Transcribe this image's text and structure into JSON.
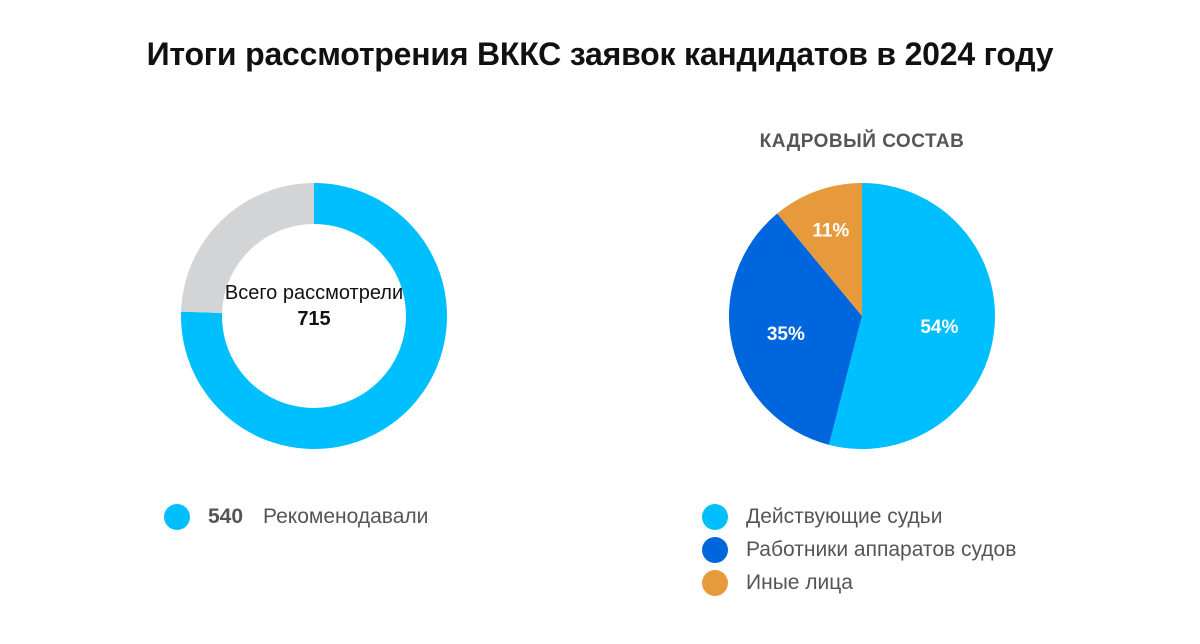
{
  "title": "Итоги рассмотрения ВККС заявок кандидатов в 2024 году",
  "chart_data": [
    {
      "type": "pie",
      "variant": "donut",
      "center_label": "Всего рассмотрели",
      "total": 715,
      "slices": [
        {
          "label": "Рекомендавали",
          "value": 540,
          "color": "#00bfff",
          "legend": true
        },
        {
          "label": "",
          "value": 175,
          "color": "#d3d4d6",
          "legend": false
        }
      ]
    },
    {
      "type": "pie",
      "title": "КАДРОВЫЙ СОСТАВ",
      "slices": [
        {
          "label": "Действующие судьи",
          "value": 54,
          "display": "54%",
          "color": "#00bfff"
        },
        {
          "label": "Работники аппаратов судов",
          "value": 35,
          "display": "35%",
          "color": "#0066dd"
        },
        {
          "label": "Иные лица",
          "value": 11,
          "display": "11%",
          "color": "#e69a3c"
        }
      ]
    }
  ],
  "donut_legend": {
    "value": "540",
    "label": "Рекоменодавали"
  }
}
